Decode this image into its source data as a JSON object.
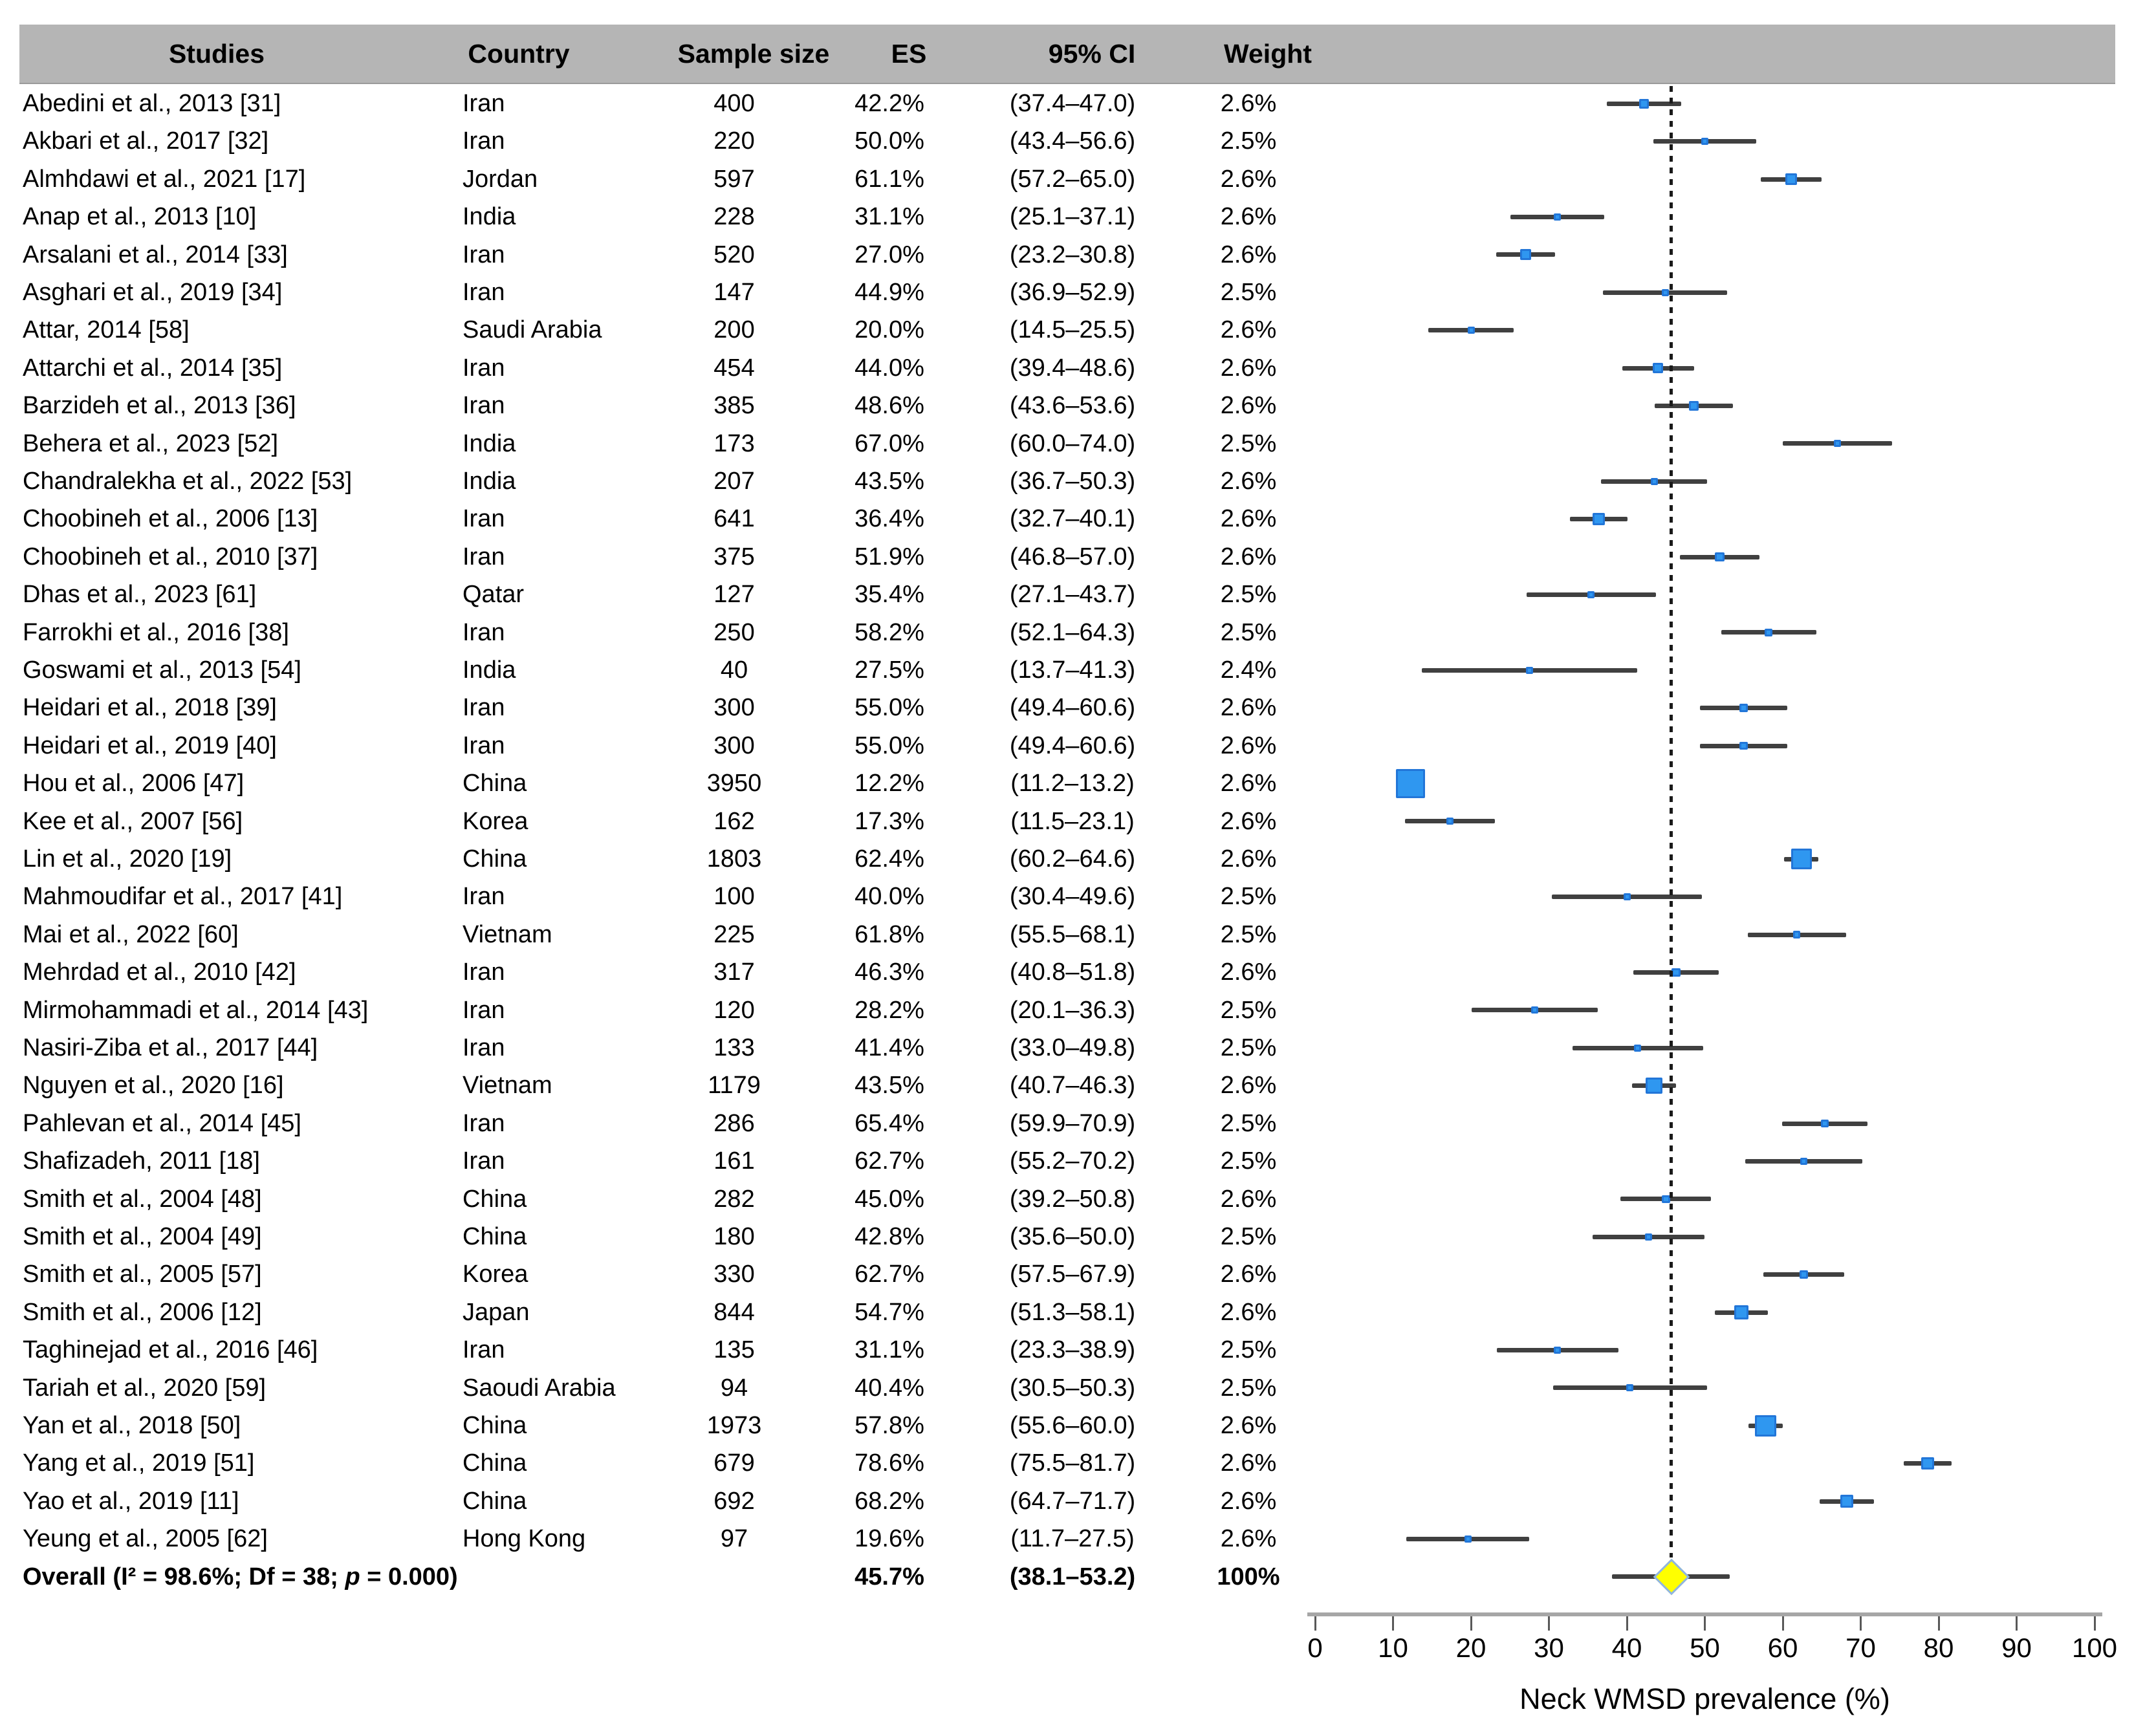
{
  "header": {
    "columns": [
      "Studies",
      "Country",
      "Sample size",
      "ES",
      "95% CI",
      "Weight"
    ]
  },
  "chart_data": {
    "type": "forest",
    "xlabel": "Neck WMSD prevalence (%)",
    "xlim": [
      0,
      100
    ],
    "xticks": [
      0,
      10,
      20,
      30,
      40,
      50,
      60,
      70,
      80,
      90,
      100
    ],
    "reference_line": 45.7,
    "legend_position": "none",
    "grid": false,
    "colors": {
      "header_bg": "#b5b5b5",
      "marker_fill": "#2f97f0",
      "marker_border": "#2276d8",
      "ci_line": "#404040",
      "reference_line": "#1a1a1a",
      "diamond_fill": "#ffff00",
      "diamond_border": "#8eb4e3",
      "axis_bar": "#a6a6a6",
      "tick": "#595959"
    },
    "studies": [
      {
        "study": "Abedini et al., 2013 [31]",
        "country": "Iran",
        "n": 400,
        "es": 42.2,
        "lo": 37.4,
        "hi": 47.0,
        "weight": "2.6%"
      },
      {
        "study": "Akbari et al., 2017 [32]",
        "country": "Iran",
        "n": 220,
        "es": 50.0,
        "lo": 43.4,
        "hi": 56.6,
        "weight": "2.5%"
      },
      {
        "study": "Almhdawi et al., 2021 [17]",
        "country": "Jordan",
        "n": 597,
        "es": 61.1,
        "lo": 57.2,
        "hi": 65.0,
        "weight": "2.6%"
      },
      {
        "study": "Anap et al., 2013 [10]",
        "country": "India",
        "n": 228,
        "es": 31.1,
        "lo": 25.1,
        "hi": 37.1,
        "weight": "2.6%"
      },
      {
        "study": "Arsalani et al., 2014 [33]",
        "country": "Iran",
        "n": 520,
        "es": 27.0,
        "lo": 23.2,
        "hi": 30.8,
        "weight": "2.6%"
      },
      {
        "study": "Asghari et al., 2019 [34]",
        "country": "Iran",
        "n": 147,
        "es": 44.9,
        "lo": 36.9,
        "hi": 52.9,
        "weight": "2.5%"
      },
      {
        "study": "Attar, 2014 [58]",
        "country": "Saudi Arabia",
        "n": 200,
        "es": 20.0,
        "lo": 14.5,
        "hi": 25.5,
        "weight": "2.6%"
      },
      {
        "study": "Attarchi et al., 2014 [35]",
        "country": "Iran",
        "n": 454,
        "es": 44.0,
        "lo": 39.4,
        "hi": 48.6,
        "weight": "2.6%"
      },
      {
        "study": "Barzideh et al., 2013 [36]",
        "country": "Iran",
        "n": 385,
        "es": 48.6,
        "lo": 43.6,
        "hi": 53.6,
        "weight": "2.6%"
      },
      {
        "study": "Behera et al., 2023 [52]",
        "country": "India",
        "n": 173,
        "es": 67.0,
        "lo": 60.0,
        "hi": 74.0,
        "weight": "2.5%"
      },
      {
        "study": "Chandralekha et al., 2022 [53]",
        "country": "India",
        "n": 207,
        "es": 43.5,
        "lo": 36.7,
        "hi": 50.3,
        "weight": "2.6%"
      },
      {
        "study": "Choobineh et al., 2006 [13]",
        "country": "Iran",
        "n": 641,
        "es": 36.4,
        "lo": 32.7,
        "hi": 40.1,
        "weight": "2.6%"
      },
      {
        "study": "Choobineh et al., 2010 [37]",
        "country": "Iran",
        "n": 375,
        "es": 51.9,
        "lo": 46.8,
        "hi": 57.0,
        "weight": "2.6%"
      },
      {
        "study": "Dhas et al., 2023 [61]",
        "country": "Qatar",
        "n": 127,
        "es": 35.4,
        "lo": 27.1,
        "hi": 43.7,
        "weight": "2.5%"
      },
      {
        "study": "Farrokhi et al., 2016 [38]",
        "country": "Iran",
        "n": 250,
        "es": 58.2,
        "lo": 52.1,
        "hi": 64.3,
        "weight": "2.5%"
      },
      {
        "study": "Goswami et al., 2013 [54]",
        "country": "India",
        "n": 40,
        "es": 27.5,
        "lo": 13.7,
        "hi": 41.3,
        "weight": "2.4%"
      },
      {
        "study": "Heidari et al., 2018 [39]",
        "country": "Iran",
        "n": 300,
        "es": 55.0,
        "lo": 49.4,
        "hi": 60.6,
        "weight": "2.6%"
      },
      {
        "study": "Heidari et al., 2019 [40]",
        "country": "Iran",
        "n": 300,
        "es": 55.0,
        "lo": 49.4,
        "hi": 60.6,
        "weight": "2.6%"
      },
      {
        "study": "Hou et al., 2006 [47]",
        "country": "China",
        "n": 3950,
        "es": 12.2,
        "lo": 11.2,
        "hi": 13.2,
        "weight": "2.6%"
      },
      {
        "study": "Kee et al., 2007 [56]",
        "country": "Korea",
        "n": 162,
        "es": 17.3,
        "lo": 11.5,
        "hi": 23.1,
        "weight": "2.6%"
      },
      {
        "study": "Lin et al., 2020 [19]",
        "country": "China",
        "n": 1803,
        "es": 62.4,
        "lo": 60.2,
        "hi": 64.6,
        "weight": "2.6%"
      },
      {
        "study": "Mahmoudifar et al., 2017 [41]",
        "country": "Iran",
        "n": 100,
        "es": 40.0,
        "lo": 30.4,
        "hi": 49.6,
        "weight": "2.5%"
      },
      {
        "study": "Mai et al., 2022 [60]",
        "country": "Vietnam",
        "n": 225,
        "es": 61.8,
        "lo": 55.5,
        "hi": 68.1,
        "weight": "2.5%"
      },
      {
        "study": "Mehrdad et al., 2010 [42]",
        "country": "Iran",
        "n": 317,
        "es": 46.3,
        "lo": 40.8,
        "hi": 51.8,
        "weight": "2.6%"
      },
      {
        "study": "Mirmohammadi et al., 2014 [43]",
        "country": "Iran",
        "n": 120,
        "es": 28.2,
        "lo": 20.1,
        "hi": 36.3,
        "weight": "2.5%"
      },
      {
        "study": "Nasiri-Ziba et al., 2017 [44]",
        "country": "Iran",
        "n": 133,
        "es": 41.4,
        "lo": 33.0,
        "hi": 49.8,
        "weight": "2.5%"
      },
      {
        "study": "Nguyen et al., 2020 [16]",
        "country": "Vietnam",
        "n": 1179,
        "es": 43.5,
        "lo": 40.7,
        "hi": 46.3,
        "weight": "2.6%"
      },
      {
        "study": "Pahlevan et al., 2014 [45]",
        "country": "Iran",
        "n": 286,
        "es": 65.4,
        "lo": 59.9,
        "hi": 70.9,
        "weight": "2.5%"
      },
      {
        "study": "Shafizadeh, 2011 [18]",
        "country": "Iran",
        "n": 161,
        "es": 62.7,
        "lo": 55.2,
        "hi": 70.2,
        "weight": "2.5%"
      },
      {
        "study": "Smith et al., 2004 [48]",
        "country": "China",
        "n": 282,
        "es": 45.0,
        "lo": 39.2,
        "hi": 50.8,
        "weight": "2.6%"
      },
      {
        "study": "Smith et al., 2004 [49]",
        "country": "China",
        "n": 180,
        "es": 42.8,
        "lo": 35.6,
        "hi": 50.0,
        "weight": "2.5%"
      },
      {
        "study": "Smith et al., 2005 [57]",
        "country": "Korea",
        "n": 330,
        "es": 62.7,
        "lo": 57.5,
        "hi": 67.9,
        "weight": "2.6%"
      },
      {
        "study": "Smith et al., 2006 [12]",
        "country": "Japan",
        "n": 844,
        "es": 54.7,
        "lo": 51.3,
        "hi": 58.1,
        "weight": "2.6%"
      },
      {
        "study": "Taghinejad et al., 2016 [46]",
        "country": "Iran",
        "n": 135,
        "es": 31.1,
        "lo": 23.3,
        "hi": 38.9,
        "weight": "2.5%"
      },
      {
        "study": "Tariah et al., 2020 [59]",
        "country": "Saoudi Arabia",
        "n": 94,
        "es": 40.4,
        "lo": 30.5,
        "hi": 50.3,
        "weight": "2.5%"
      },
      {
        "study": "Yan et al., 2018 [50]",
        "country": "China",
        "n": 1973,
        "es": 57.8,
        "lo": 55.6,
        "hi": 60.0,
        "weight": "2.6%"
      },
      {
        "study": "Yang et al., 2019 [51]",
        "country": "China",
        "n": 679,
        "es": 78.6,
        "lo": 75.5,
        "hi": 81.7,
        "weight": "2.6%"
      },
      {
        "study": "Yao et al., 2019 [11]",
        "country": "China",
        "n": 692,
        "es": 68.2,
        "lo": 64.7,
        "hi": 71.7,
        "weight": "2.6%"
      },
      {
        "study": "Yeung et al., 2005 [62]",
        "country": "Hong Kong",
        "n": 97,
        "es": 19.6,
        "lo": 11.7,
        "hi": 27.5,
        "weight": "2.6%"
      }
    ],
    "overall": {
      "label": "Overall (I² = 98.6%; Df = 38; p = 0.000)",
      "es": 45.7,
      "lo": 38.1,
      "hi": 53.2,
      "weight": "100%"
    }
  }
}
